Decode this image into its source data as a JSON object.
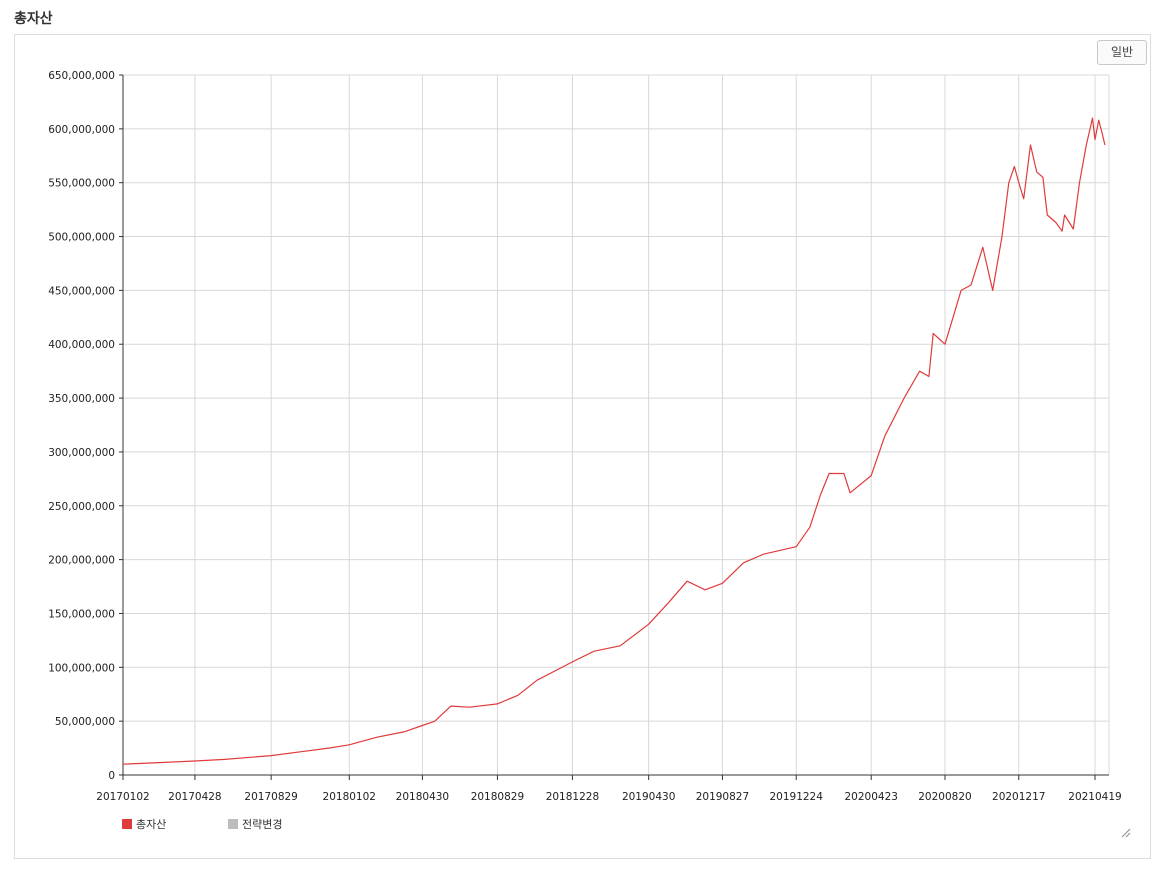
{
  "header": {
    "title": "총자산"
  },
  "toolbar": {
    "mode_label": "일반"
  },
  "colors": {
    "line": "#e03b3b",
    "alt": "#bdbdbd",
    "grid": "#d8d8d8",
    "axis": "#333333"
  },
  "chart_data": {
    "type": "line",
    "title": "",
    "xlabel": "",
    "ylabel": "",
    "x_axis": {
      "type": "date",
      "tick_labels": [
        "20170102",
        "20170428",
        "20170829",
        "20180102",
        "20180430",
        "20180829",
        "20181228",
        "20190430",
        "20190827",
        "20191224",
        "20200423",
        "20200820",
        "20201217",
        "20210419"
      ]
    },
    "ylim": [
      0,
      650000000
    ],
    "y_ticks": [
      0,
      50000000,
      100000000,
      150000000,
      200000000,
      250000000,
      300000000,
      350000000,
      400000000,
      450000000,
      500000000,
      550000000,
      600000000,
      650000000
    ],
    "y_tick_labels": [
      "0",
      "50,000,000",
      "100,000,000",
      "150,000,000",
      "200,000,000",
      "250,000,000",
      "300,000,000",
      "350,000,000",
      "400,000,000",
      "450,000,000",
      "500,000,000",
      "550,000,000",
      "600,000,000",
      "650,000,000"
    ],
    "grid": true,
    "legend_position": "bottom-left",
    "series": [
      {
        "name": "총자산",
        "color": "#e03b3b",
        "points": [
          [
            "20170102",
            10000000
          ],
          [
            "20170301",
            11500000
          ],
          [
            "20170428",
            13000000
          ],
          [
            "20170615",
            14500000
          ],
          [
            "20170829",
            18000000
          ],
          [
            "20171015",
            21500000
          ],
          [
            "20171130",
            25000000
          ],
          [
            "20180102",
            28000000
          ],
          [
            "20180215",
            35000000
          ],
          [
            "20180331",
            40000000
          ],
          [
            "20180430",
            46000000
          ],
          [
            "20180520",
            50000000
          ],
          [
            "20180615",
            64000000
          ],
          [
            "20180715",
            63000000
          ],
          [
            "20180829",
            66000000
          ],
          [
            "20181001",
            74000000
          ],
          [
            "20181101",
            88000000
          ],
          [
            "20181228",
            105000000
          ],
          [
            "20190201",
            115000000
          ],
          [
            "20190315",
            120000000
          ],
          [
            "20190430",
            140000000
          ],
          [
            "20190601",
            160000000
          ],
          [
            "20190701",
            180000000
          ],
          [
            "20190730",
            172000000
          ],
          [
            "20190827",
            178000000
          ],
          [
            "20190930",
            197000000
          ],
          [
            "20191101",
            205000000
          ],
          [
            "20191224",
            212000000
          ],
          [
            "20200115",
            230000000
          ],
          [
            "20200201",
            260000000
          ],
          [
            "20200215",
            280000000
          ],
          [
            "20200310",
            280000000
          ],
          [
            "20200320",
            262000000
          ],
          [
            "20200423",
            278000000
          ],
          [
            "20200515",
            315000000
          ],
          [
            "20200615",
            350000000
          ],
          [
            "20200710",
            375000000
          ],
          [
            "20200725",
            370000000
          ],
          [
            "20200801",
            410000000
          ],
          [
            "20200820",
            400000000
          ],
          [
            "20200915",
            450000000
          ],
          [
            "20201001",
            455000000
          ],
          [
            "20201020",
            490000000
          ],
          [
            "20201105",
            450000000
          ],
          [
            "20201120",
            500000000
          ],
          [
            "20201201",
            550000000
          ],
          [
            "20201210",
            565000000
          ],
          [
            "20201217",
            550000000
          ],
          [
            "20201225",
            535000000
          ],
          [
            "20210105",
            585000000
          ],
          [
            "20210115",
            560000000
          ],
          [
            "20210125",
            555000000
          ],
          [
            "20210201",
            520000000
          ],
          [
            "20210215",
            513000000
          ],
          [
            "20210225",
            505000000
          ],
          [
            "20210301",
            520000000
          ],
          [
            "20210315",
            507000000
          ],
          [
            "20210325",
            550000000
          ],
          [
            "20210405",
            585000000
          ],
          [
            "20210415",
            610000000
          ],
          [
            "20210419",
            590000000
          ],
          [
            "20210425",
            608000000
          ],
          [
            "20210501",
            595000000
          ],
          [
            "20210505",
            585000000
          ]
        ]
      },
      {
        "name": "전략변경",
        "color": "#bdbdbd",
        "points": []
      }
    ]
  }
}
